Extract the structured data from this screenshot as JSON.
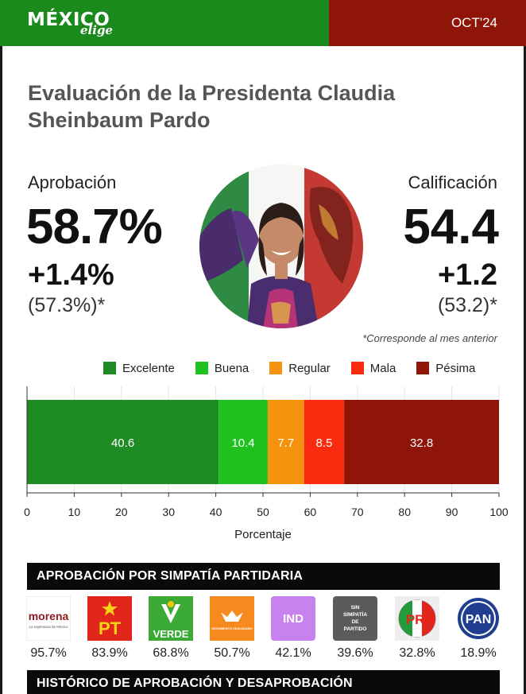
{
  "header": {
    "brand": "MÉXICO",
    "brand_sub": "elige",
    "period": "OCT'24",
    "colors": {
      "green": "#1b8a1d",
      "red": "#8e1508"
    }
  },
  "title": "Evaluación de la Presidenta Claudia Sheinbaum Pardo",
  "approval": {
    "label": "Aprobación",
    "value": "58.7%",
    "change": "+1.4%",
    "previous": "(57.3%)*"
  },
  "grade": {
    "label": "Calificación",
    "value": "54.4",
    "change": "+1.2",
    "previous": "(53.2)*"
  },
  "footnote": "*Corresponde al mes anterior",
  "chart_data": {
    "type": "bar",
    "orientation": "horizontal",
    "stacked": true,
    "xlabel": "Porcentaje",
    "xlim": [
      0,
      100
    ],
    "ticks": [
      0,
      10,
      20,
      30,
      40,
      50,
      60,
      70,
      80,
      90,
      100
    ],
    "grid": true,
    "legend_position": "top",
    "series": [
      {
        "name": "Excelente",
        "value": 40.6,
        "label": "40.6",
        "color": "#1f8b24"
      },
      {
        "name": "Buena",
        "value": 10.4,
        "label": "10.4",
        "color": "#1fc11f"
      },
      {
        "name": "Regular",
        "value": 7.7,
        "label": "7.7",
        "color": "#f5930f"
      },
      {
        "name": "Mala",
        "value": 8.5,
        "label": "8.5",
        "color": "#fa2b0f"
      },
      {
        "name": "Pésima",
        "value": 32.8,
        "label": "32.8",
        "color": "#8e1508"
      }
    ]
  },
  "section_party": "APROBACIÓN POR SIMPATÍA PARTIDARIA",
  "parties": [
    {
      "name": "morena",
      "tagline": "La esperanza de México",
      "value": "95.7%",
      "icon": "morena-logo"
    },
    {
      "name": "PT",
      "value": "83.9%",
      "icon": "pt-logo"
    },
    {
      "name": "VERDE",
      "value": "68.8%",
      "icon": "verde-logo"
    },
    {
      "name": "MOVIMIENTO CIUDADANO",
      "value": "50.7%",
      "icon": "mc-logo"
    },
    {
      "name": "IND",
      "value": "42.1%",
      "icon": "ind-logo"
    },
    {
      "name": "SIN SIMPATÍA DE PARTIDO",
      "value": "39.6%",
      "icon": "no-party-logo"
    },
    {
      "name": "PRI",
      "value": "32.8%",
      "icon": "pri-logo"
    },
    {
      "name": "PAN",
      "value": "18.9%",
      "icon": "pan-logo"
    }
  ],
  "section_history": "HISTÓRICO DE APROBACIÓN Y DESAPROBACIÓN"
}
